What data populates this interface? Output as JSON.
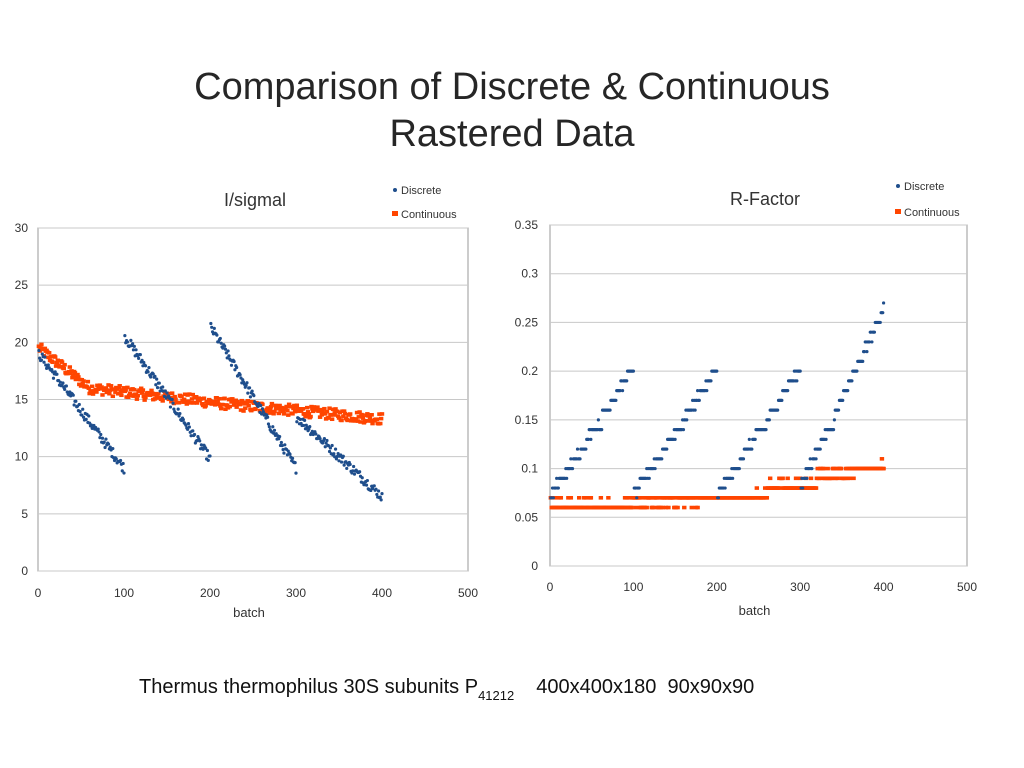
{
  "slide": {
    "title_line1": "Comparison of Discrete & Continuous",
    "title_line2": "Rastered Data",
    "caption": {
      "text": "Thermus thermophilus 30S subunits P",
      "subscript": "41212",
      "dims_a": "400x400x180",
      "dims_b": "90x90x90"
    }
  },
  "colors": {
    "discrete": "#1f4e8c",
    "continuous": "#ff4500",
    "grid": "#c8c8c8",
    "axis": "#9a9a9a"
  },
  "chart_data": [
    {
      "type": "scatter",
      "title": "I/sigmal",
      "xlabel": "batch",
      "ylabel": "",
      "xlim": [
        0,
        500
      ],
      "ylim": [
        0,
        30
      ],
      "xticks": [
        0,
        100,
        200,
        300,
        400,
        500
      ],
      "yticks": [
        0,
        5,
        10,
        15,
        20,
        25,
        30
      ],
      "grid": true,
      "legend_position": "top-right",
      "series": [
        {
          "name": "Discrete",
          "marker": "dot",
          "segments": [
            {
              "x_start": 1,
              "x_end": 100,
              "y_start": 19.0,
              "y_end": 9.0
            },
            {
              "x_start": 101,
              "x_end": 200,
              "y_start": 20.5,
              "y_end": 9.8
            },
            {
              "x_start": 201,
              "x_end": 300,
              "y_start": 21.3,
              "y_end": 9.0
            },
            {
              "x_start": 301,
              "x_end": 400,
              "y_start": 13.5,
              "y_end": 6.5
            }
          ]
        },
        {
          "name": "Continuous",
          "marker": "square",
          "segments": [
            {
              "x_start": 1,
              "x_end": 60,
              "y_start": 19.5,
              "y_end": 16.0
            },
            {
              "x_start": 61,
              "x_end": 220,
              "y_start": 16.0,
              "y_end": 14.6
            },
            {
              "x_start": 221,
              "x_end": 400,
              "y_start": 14.6,
              "y_end": 13.3
            }
          ]
        }
      ]
    },
    {
      "type": "scatter",
      "title": "R-Factor",
      "xlabel": "batch",
      "ylabel": "",
      "xlim": [
        0,
        500
      ],
      "ylim": [
        0,
        0.35
      ],
      "xticks": [
        0,
        100,
        200,
        300,
        400,
        500
      ],
      "yticks": [
        0,
        0.05,
        0.1,
        0.15,
        0.2,
        0.25,
        0.3,
        0.35
      ],
      "grid": true,
      "legend_position": "top-right",
      "series": [
        {
          "name": "Discrete",
          "marker": "dot",
          "segments": [
            {
              "x_start": 1,
              "x_end": 100,
              "y_start": 0.07,
              "y_end": 0.2
            },
            {
              "x_start": 101,
              "x_end": 200,
              "y_start": 0.07,
              "y_end": 0.2
            },
            {
              "x_start": 201,
              "x_end": 300,
              "y_start": 0.07,
              "y_end": 0.2
            },
            {
              "x_start": 301,
              "x_end": 400,
              "y_start": 0.08,
              "y_end": 0.26
            }
          ]
        },
        {
          "name": "Continuous",
          "marker": "square",
          "segments": [
            {
              "x_start": 1,
              "x_end": 80,
              "y_start": 0.06,
              "y_end": 0.06
            },
            {
              "x_start": 81,
              "x_end": 260,
              "y_start": 0.06,
              "y_end": 0.07
            },
            {
              "x_start": 261,
              "x_end": 320,
              "y_start": 0.08,
              "y_end": 0.08
            },
            {
              "x_start": 321,
              "x_end": 400,
              "y_start": 0.09,
              "y_end": 0.1
            }
          ]
        }
      ]
    }
  ]
}
